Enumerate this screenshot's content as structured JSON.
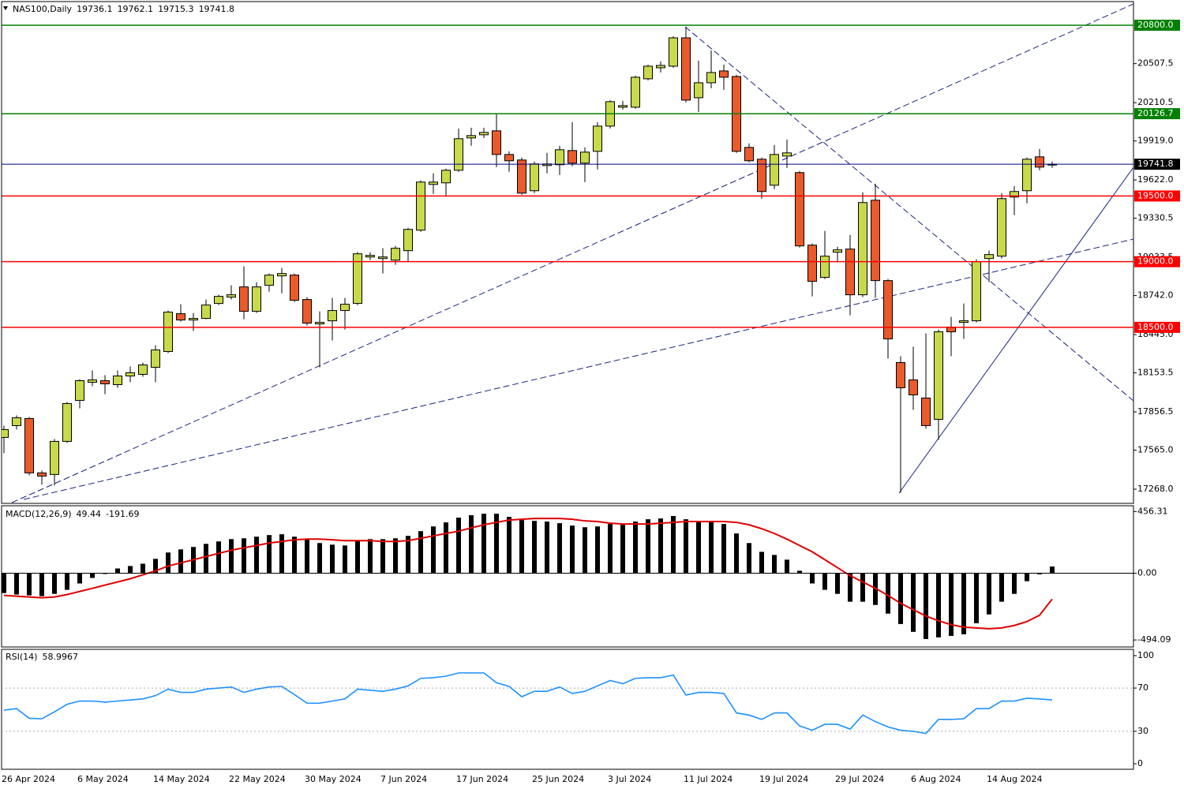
{
  "chart_data": [
    {
      "type": "candlestick",
      "title": "NAS100,Daily",
      "categories": [
        "26 Apr 2024",
        null,
        null,
        null,
        null,
        null,
        "6 May 2024",
        null,
        null,
        null,
        null,
        null,
        "14 May 2024",
        null,
        null,
        null,
        null,
        null,
        "22 May 2024",
        null,
        null,
        null,
        null,
        null,
        "30 May 2024",
        null,
        null,
        null,
        null,
        null,
        "7 Jun 2024",
        null,
        null,
        null,
        null,
        null,
        "17 Jun 2024",
        null,
        null,
        null,
        null,
        null,
        "25 Jun 2024",
        null,
        null,
        null,
        null,
        null,
        "3 Jul 2024",
        null,
        null,
        null,
        null,
        null,
        "11 Jul 2024",
        null,
        null,
        null,
        null,
        null,
        "19 Jul 2024",
        null,
        null,
        null,
        null,
        null,
        "29 Jul 2024",
        null,
        null,
        null,
        null,
        null,
        "6 Aug 2024",
        null,
        null,
        null,
        null,
        null,
        "14 Aug 2024",
        null,
        null,
        null,
        null,
        null
      ],
      "open": [
        17662,
        17752,
        17806,
        17392,
        17380,
        17632,
        17944,
        18082,
        18094,
        18064,
        18130,
        18142,
        18196,
        18316,
        18604,
        18556,
        18568,
        18682,
        18730,
        18808,
        18622,
        18820,
        18892,
        18898,
        18712,
        18526,
        18550,
        18628,
        18682,
        19036,
        19024,
        19012,
        19084,
        19240,
        19588,
        19600,
        19696,
        19942,
        19966,
        19996,
        19816,
        19774,
        19540,
        19732,
        19738,
        19846,
        19750,
        19840,
        20032,
        20176,
        20176,
        20392,
        20476,
        20488,
        20704,
        20248,
        20362,
        20452,
        20410,
        19870,
        19780,
        19582,
        19804,
        19678,
        19126,
        18880,
        19072,
        19096,
        18748,
        19468,
        18856,
        18232,
        18100,
        17962,
        17800,
        18502,
        18538,
        18550,
        19024,
        19042,
        19492,
        19540,
        19798,
        19736.1
      ],
      "high": [
        17752,
        17830,
        17818,
        17410,
        17650,
        17932,
        18106,
        18172,
        18136,
        18172,
        18202,
        18232,
        18364,
        18628,
        18676,
        18610,
        18712,
        18748,
        18820,
        18964,
        18844,
        18910,
        18952,
        18910,
        18730,
        18622,
        18724,
        18724,
        19072,
        19072,
        19102,
        19120,
        19258,
        19618,
        19672,
        19708,
        20014,
        20020,
        20020,
        20128,
        19840,
        19792,
        19762,
        19828,
        19882,
        20062,
        19870,
        20062,
        20230,
        20224,
        20416,
        20500,
        20524,
        20716,
        20788,
        20530,
        20608,
        20500,
        20422,
        19900,
        19792,
        19888,
        19930,
        19690,
        19138,
        19234,
        19114,
        19204,
        19528,
        19594,
        18868,
        18280,
        18352,
        18454,
        18484,
        18580,
        18682,
        19018,
        19084,
        19522,
        19576,
        19792,
        19858,
        19762.1
      ],
      "low": [
        17542,
        17722,
        17374,
        17302,
        17296,
        17620,
        17884,
        18052,
        17992,
        18040,
        18082,
        18124,
        18082,
        18304,
        18544,
        18472,
        18562,
        18670,
        18712,
        18562,
        18610,
        18772,
        18760,
        18694,
        18514,
        18196,
        18400,
        18484,
        18670,
        19012,
        18910,
        18976,
        19000,
        19228,
        19516,
        19504,
        19684,
        19882,
        19942,
        19720,
        19684,
        19510,
        19522,
        19672,
        19660,
        19726,
        19606,
        19702,
        20014,
        20158,
        20164,
        20380,
        20440,
        20476,
        20212,
        20140,
        20320,
        20308,
        19828,
        19756,
        19480,
        19552,
        19714,
        19108,
        18736,
        18868,
        18994,
        18592,
        18730,
        18724,
        18262,
        17242,
        17872,
        17728,
        17644,
        18280,
        18412,
        18538,
        18844,
        19024,
        19354,
        19444,
        19696,
        19715.3
      ],
      "close": [
        17722,
        17812,
        17392,
        17368,
        17632,
        17920,
        18094,
        18100,
        18070,
        18130,
        18154,
        18214,
        18328,
        18616,
        18556,
        18568,
        18670,
        18736,
        18748,
        18622,
        18808,
        18898,
        18910,
        18706,
        18532,
        18538,
        18628,
        18676,
        19060,
        19048,
        19036,
        19102,
        19246,
        19606,
        19606,
        19696,
        19936,
        19960,
        19984,
        19816,
        19768,
        19522,
        19744,
        19744,
        19852,
        19750,
        19834,
        20032,
        20218,
        20188,
        20404,
        20488,
        20494,
        20704,
        20230,
        20362,
        20440,
        20404,
        19840,
        19768,
        19534,
        19816,
        19828,
        19120,
        18850,
        19042,
        19090,
        18748,
        19450,
        18856,
        18412,
        18040,
        17986,
        17752,
        18466,
        18466,
        18550,
        19000,
        19054,
        19480,
        19534,
        19780,
        19720,
        19741.8
      ],
      "up_color": "#c9d94c",
      "down_color": "#ea5a2b",
      "price_line_color": "#00007f",
      "ylim": [
        17160,
        20980
      ],
      "yticks": [
        20507.5,
        20210.5,
        {
          "value": 19919,
          "label": "19919.0"
        },
        {
          "value": 19622,
          "label": "19622.0"
        },
        19330.5,
        19033.5,
        {
          "value": 18742,
          "label": "18742.0"
        },
        {
          "value": 18445,
          "label": "18445.0"
        },
        18153.5,
        17856.5,
        {
          "value": 17565,
          "label": "17565.0"
        },
        {
          "value": 17268,
          "label": "17268.0"
        }
      ],
      "levels": [
        {
          "value": 20800,
          "label": "20800.0",
          "color": "#008000"
        },
        {
          "value": 20126.7,
          "color": "#008000"
        },
        {
          "value": 19500,
          "label": "19500.0",
          "color": "#ff0000"
        },
        {
          "value": 19000,
          "label": "19000.0",
          "color": "#ff0000"
        },
        {
          "value": 18500,
          "label": "18500.0",
          "color": "#ff0000"
        }
      ]
    },
    {
      "type": "combo",
      "title": "MACD(12,26,9)",
      "series": [
        {
          "type": "bar",
          "color": "#000000",
          "values": [
            -147,
            -158,
            -164,
            -170,
            -153,
            -123,
            -76,
            -35,
            -3,
            35,
            53,
            70,
            106,
            153,
            176,
            194,
            217,
            235,
            252,
            258,
            270,
            282,
            288,
            270,
            247,
            223,
            211,
            205,
            241,
            252,
            252,
            258,
            276,
            311,
            346,
            376,
            411,
            429,
            440,
            440,
            417,
            393,
            387,
            382,
            370,
            352,
            340,
            346,
            364,
            358,
            382,
            399,
            405,
            423,
            399,
            387,
            382,
            364,
            294,
            223,
            158,
            135,
            100,
            18,
            -76,
            -123,
            -153,
            -211,
            -211,
            -235,
            -299,
            -376,
            -434,
            -487,
            -475,
            -464,
            -452,
            -370,
            -305,
            -211,
            -153,
            -59,
            -8,
            49.44
          ]
        },
        {
          "type": "line",
          "color": "#e00000",
          "values": [
            -164,
            -170,
            -176,
            -182,
            -176,
            -158,
            -135,
            -112,
            -88,
            -65,
            -41,
            -12,
            18,
            53,
            76,
            100,
            123,
            147,
            170,
            188,
            205,
            223,
            235,
            247,
            252,
            252,
            247,
            241,
            241,
            241,
            235,
            235,
            241,
            258,
            276,
            294,
            311,
            335,
            358,
            376,
            393,
            399,
            405,
            405,
            405,
            399,
            387,
            382,
            370,
            364,
            364,
            364,
            370,
            376,
            382,
            382,
            382,
            382,
            376,
            358,
            329,
            294,
            252,
            205,
            158,
            100,
            41,
            -18,
            -65,
            -112,
            -164,
            -223,
            -270,
            -317,
            -352,
            -381,
            -399,
            -405,
            -411,
            -405,
            -387,
            -358,
            -311,
            -191.69
          ]
        }
      ],
      "ylim": [
        -546,
        499
      ],
      "yticks": [
        456.31,
        {
          "value": 0,
          "label": "0.00"
        },
        -494.09
      ],
      "zero_line": true
    },
    {
      "type": "line",
      "title": "RSI(14)",
      "color": "#1e90ff",
      "values": [
        49.6,
        51,
        42,
        41.6,
        48,
        55,
        58,
        58,
        57,
        58,
        59,
        60,
        63,
        69,
        66,
        66,
        69,
        70,
        71,
        66,
        69,
        71,
        71.5,
        64,
        56,
        56,
        58,
        60,
        69,
        68,
        67,
        69,
        72,
        79,
        79.6,
        81,
        84,
        84,
        84,
        75,
        71.5,
        62,
        67,
        67,
        71,
        65,
        67,
        72,
        77,
        74,
        79,
        79.6,
        79.6,
        82,
        63.5,
        66,
        66,
        65,
        47,
        45,
        41,
        47,
        47,
        35,
        31,
        36.5,
        36.5,
        32,
        45,
        39,
        34,
        31,
        30,
        28,
        41,
        41,
        41.6,
        51,
        51,
        58,
        58,
        60.6,
        60,
        58.9967
      ],
      "ylim": [
        -5.1,
        105.8
      ],
      "yticks": [
        100,
        70,
        30,
        0
      ],
      "levels": [
        70,
        30
      ]
    }
  ]
}
